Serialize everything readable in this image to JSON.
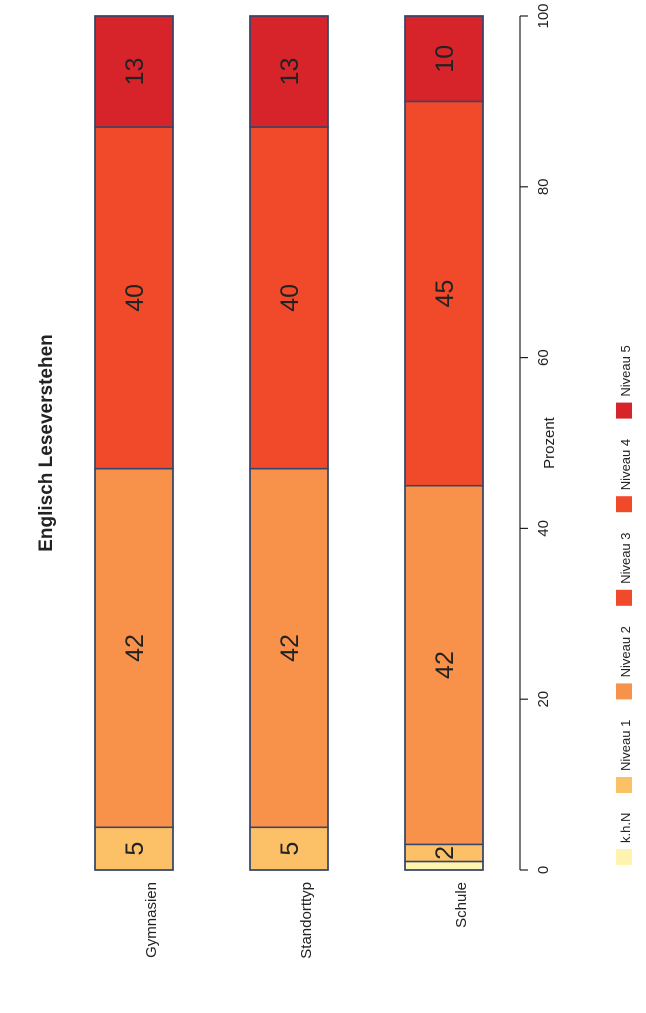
{
  "chart_data": {
    "type": "bar",
    "orientation": "stacked-horizontal (rotated page)",
    "title": "Englisch Leseverstehen",
    "xlabel": "Prozent",
    "xlim": [
      0,
      100
    ],
    "ticks": [
      "0",
      "20",
      "40",
      "60",
      "80",
      "100"
    ],
    "categories": [
      "Gymnasien",
      "Standorttyp",
      "Schule"
    ],
    "series": [
      {
        "name": "k.h.N",
        "color": "#FFF3B0",
        "values": [
          0,
          0,
          1
        ],
        "labels": [
          "",
          "",
          ""
        ]
      },
      {
        "name": "Niveau 1",
        "color": "#FCC066",
        "values": [
          5,
          5,
          2
        ],
        "labels": [
          "5",
          "5",
          "2"
        ]
      },
      {
        "name": "Niveau 2",
        "color": "#F89149",
        "values": [
          42,
          42,
          42
        ],
        "labels": [
          "42",
          "42",
          "42"
        ]
      },
      {
        "name": "Niveau 3",
        "color": "#F04A2A",
        "values": [
          40,
          40,
          45
        ],
        "labels": [
          "40",
          "40",
          "45"
        ]
      },
      {
        "name": "Niveau 4",
        "color": "#F04A2A",
        "values": [
          0,
          0,
          0
        ],
        "labels": [
          "",
          "",
          ""
        ]
      },
      {
        "name": "Niveau 5",
        "color": "#D7232A",
        "values": [
          13,
          13,
          10
        ],
        "labels": [
          "13",
          "13",
          "10"
        ]
      }
    ],
    "legend_position": "bottom",
    "grid": false
  }
}
